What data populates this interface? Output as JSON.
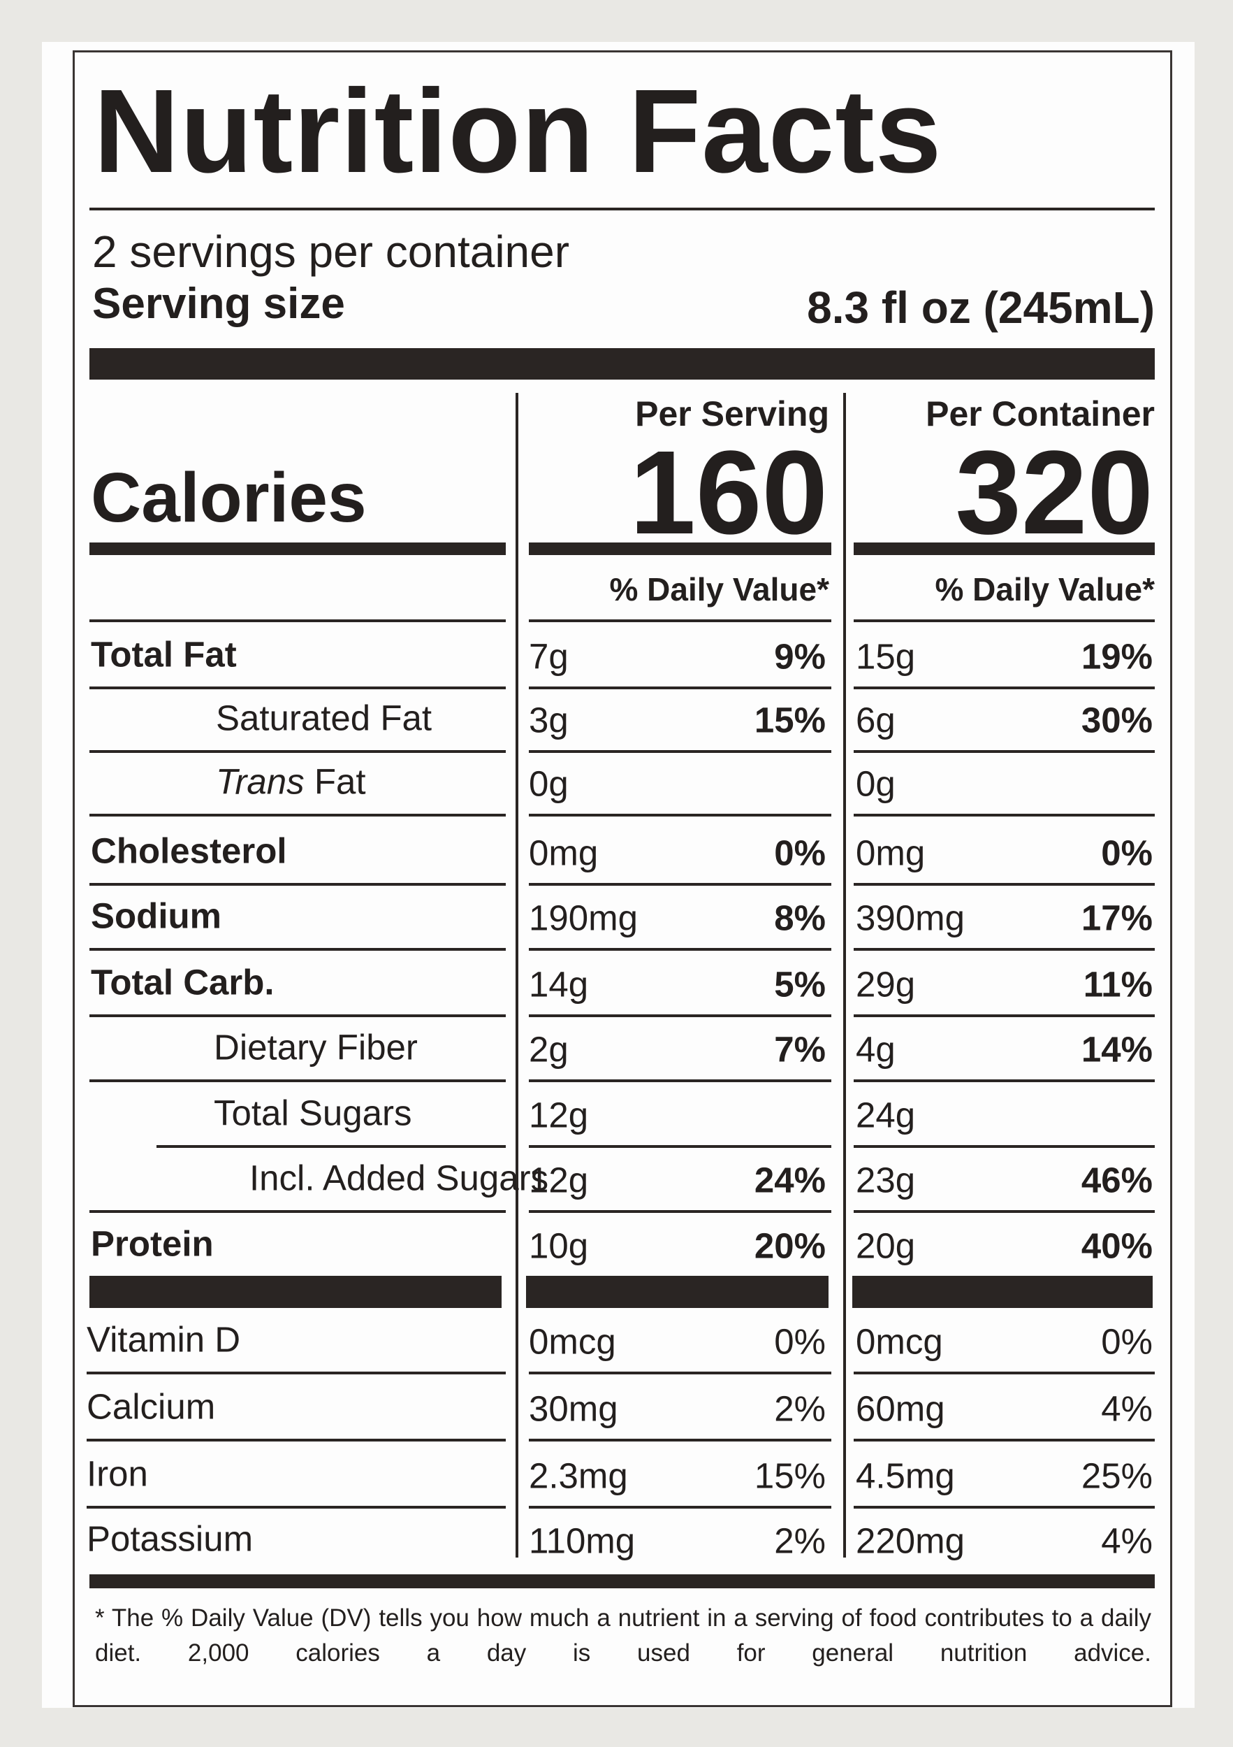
{
  "title": "Nutrition Facts",
  "servings": "2 servings per container",
  "serving_size": {
    "label": "Serving size",
    "value": "8.3 fl oz (245mL)"
  },
  "columns": [
    "Per Serving",
    "Per Container"
  ],
  "calories": {
    "label": "Calories",
    "values": [
      "160",
      "320"
    ]
  },
  "dv_headers": [
    "% Daily Value*",
    "% Daily Value*"
  ],
  "nutrients": [
    {
      "label": "Total Fat",
      "amounts": [
        "7g",
        "15g"
      ],
      "dv": [
        "9%",
        "19%"
      ]
    },
    {
      "label": "Saturated Fat",
      "amounts": [
        "3g",
        "6g"
      ],
      "dv": [
        "15%",
        "30%"
      ]
    },
    {
      "label_italic": "Trans",
      "label": "Fat",
      "amounts": [
        "0g",
        "0g"
      ],
      "dv": null
    },
    {
      "label": "Cholesterol",
      "amounts": [
        "0mg",
        "0mg"
      ],
      "dv": [
        "0%",
        "0%"
      ]
    },
    {
      "label": "Sodium",
      "amounts": [
        "190mg",
        "390mg"
      ],
      "dv": [
        "8%",
        "17%"
      ]
    },
    {
      "label": "Total Carb.",
      "amounts": [
        "14g",
        "29g"
      ],
      "dv": [
        "5%",
        "11%"
      ]
    },
    {
      "label": "Dietary Fiber",
      "amounts": [
        "2g",
        "4g"
      ],
      "dv": [
        "7%",
        "14%"
      ]
    },
    {
      "label": "Total Sugars",
      "amounts": [
        "12g",
        "24g"
      ],
      "dv": null
    },
    {
      "label": "Incl. Added Sugars",
      "amounts": [
        "12g",
        "23g"
      ],
      "dv": [
        "24%",
        "46%"
      ]
    },
    {
      "label": "Protein",
      "amounts": [
        "10g",
        "20g"
      ],
      "dv": [
        "20%",
        "40%"
      ]
    }
  ],
  "vitamins": [
    {
      "label": "Vitamin D",
      "amounts": [
        "0mcg",
        "0mcg"
      ],
      "dv": [
        "0%",
        "0%"
      ]
    },
    {
      "label": "Calcium",
      "amounts": [
        "30mg",
        "60mg"
      ],
      "dv": [
        "2%",
        "4%"
      ]
    },
    {
      "label": "Iron",
      "amounts": [
        "2.3mg",
        "4.5mg"
      ],
      "dv": [
        "15%",
        "25%"
      ]
    },
    {
      "label": "Potassium",
      "amounts": [
        "110mg",
        "220mg"
      ],
      "dv": [
        "2%",
        "4%"
      ]
    }
  ],
  "footnote": "* The % Daily Value (DV) tells you how much a nutrient in a serving of food contributes to a daily diet. 2,000 calories a day is used for general nutrition advice."
}
